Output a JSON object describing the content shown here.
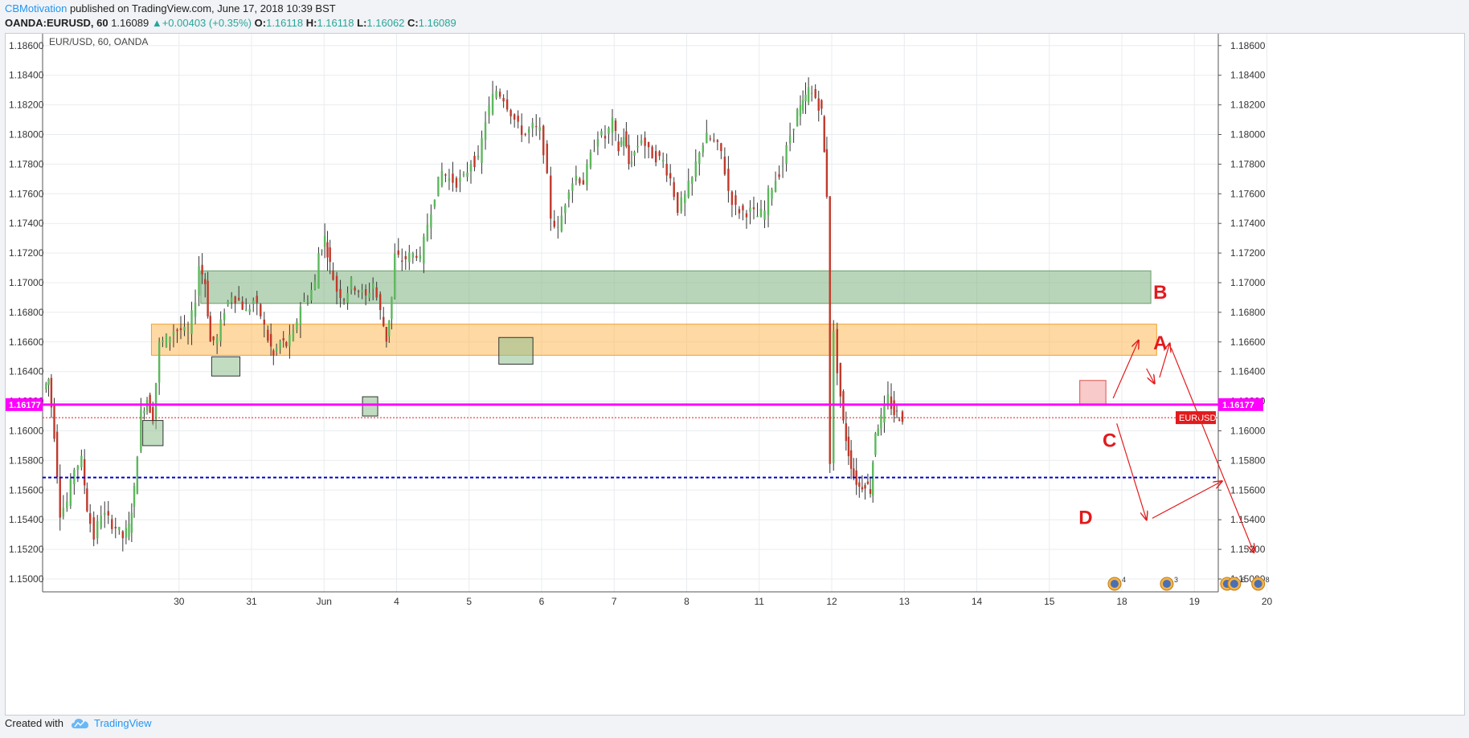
{
  "header": {
    "author": "CBMotivation",
    "published": "published on TradingView.com, June 17, 2018 10:39 BST",
    "symbol": "OANDA:EURUSD, 60",
    "last": "1.16089",
    "change_arrow": "▲",
    "change": "+0.00403 (+0.35%)",
    "o_label": "O:",
    "o_value": "1.16118",
    "h_label": "H:",
    "h_value": "1.16118",
    "l_label": "L:",
    "l_value": "1.16062",
    "c_label": "C:",
    "c_value": "1.16089"
  },
  "footer": {
    "created_with": "Created with",
    "brand": "TradingView"
  },
  "colors": {
    "bull": "#5cb85c",
    "bear": "#c0392b",
    "zone_green": "#7fb27f",
    "zone_orange": "#ffb347",
    "magenta": "#ff00ff",
    "blue_dash": "#0000cc",
    "annotation_red": "#e31a1c",
    "last_price_label": "#e31a1c"
  },
  "chart_data": {
    "type": "candlestick",
    "title": "EUR/USD, 60, OANDA",
    "ylim": [
      1.1487,
      1.1867
    ],
    "y_ticks": [
      "1.18600",
      "1.18400",
      "1.18200",
      "1.18000",
      "1.17800",
      "1.17600",
      "1.17400",
      "1.17200",
      "1.17000",
      "1.16800",
      "1.16600",
      "1.16400",
      "1.16200",
      "1.16000",
      "1.15800",
      "1.15600",
      "1.15400",
      "1.15200",
      "1.15000"
    ],
    "x_ticks": [
      {
        "day": 1.0,
        "label": "30"
      },
      {
        "day": 2.0,
        "label": "31"
      },
      {
        "day": 3.0,
        "label": "Jun"
      },
      {
        "day": 4.0,
        "label": "4"
      },
      {
        "day": 5.0,
        "label": "5"
      },
      {
        "day": 6.0,
        "label": "6"
      },
      {
        "day": 7.0,
        "label": "7"
      },
      {
        "day": 8.0,
        "label": "8"
      },
      {
        "day": 9.0,
        "label": "11"
      },
      {
        "day": 10.0,
        "label": "12"
      },
      {
        "day": 11.0,
        "label": "13"
      },
      {
        "day": 12.0,
        "label": "14"
      },
      {
        "day": 13.0,
        "label": "15"
      },
      {
        "day": 14.0,
        "label": "18"
      },
      {
        "day": 15.0,
        "label": "19"
      },
      {
        "day": 16.0,
        "label": "20"
      }
    ],
    "price_path": [
      [
        -0.85,
        1.1628
      ],
      [
        -0.78,
        1.1635
      ],
      [
        -0.7,
        1.1598
      ],
      [
        -0.62,
        1.1545
      ],
      [
        -0.52,
        1.1552
      ],
      [
        -0.42,
        1.1575
      ],
      [
        -0.32,
        1.158
      ],
      [
        -0.25,
        1.1548
      ],
      [
        -0.15,
        1.1528
      ],
      [
        -0.05,
        1.1545
      ],
      [
        0.05,
        1.154
      ],
      [
        0.15,
        1.1535
      ],
      [
        0.25,
        1.1528
      ],
      [
        0.33,
        1.1535
      ],
      [
        0.4,
        1.156
      ],
      [
        0.5,
        1.1612
      ],
      [
        0.58,
        1.1622
      ],
      [
        0.66,
        1.1608
      ],
      [
        0.75,
        1.1658
      ],
      [
        0.85,
        1.1662
      ],
      [
        0.95,
        1.1668
      ],
      [
        1.05,
        1.1668
      ],
      [
        1.15,
        1.1665
      ],
      [
        1.25,
        1.169
      ],
      [
        1.3,
        1.1712
      ],
      [
        1.38,
        1.17
      ],
      [
        1.45,
        1.166
      ],
      [
        1.55,
        1.1662
      ],
      [
        1.65,
        1.1682
      ],
      [
        1.75,
        1.1692
      ],
      [
        1.85,
        1.1688
      ],
      [
        1.95,
        1.168
      ],
      [
        2.05,
        1.1688
      ],
      [
        2.15,
        1.1678
      ],
      [
        2.25,
        1.1662
      ],
      [
        2.32,
        1.165
      ],
      [
        2.42,
        1.166
      ],
      [
        2.5,
        1.1658
      ],
      [
        2.6,
        1.1665
      ],
      [
        2.7,
        1.1685
      ],
      [
        2.8,
        1.169
      ],
      [
        2.9,
        1.17
      ],
      [
        2.95,
        1.172
      ],
      [
        3.03,
        1.173
      ],
      [
        3.1,
        1.1712
      ],
      [
        3.2,
        1.1695
      ],
      [
        3.3,
        1.169
      ],
      [
        3.4,
        1.17
      ],
      [
        3.5,
        1.1695
      ],
      [
        3.6,
        1.169
      ],
      [
        3.7,
        1.17
      ],
      [
        3.8,
        1.168
      ],
      [
        3.88,
        1.1662
      ],
      [
        3.95,
        1.169
      ],
      [
        4.0,
        1.1718
      ],
      [
        4.1,
        1.1715
      ],
      [
        4.2,
        1.1718
      ],
      [
        4.3,
        1.172
      ],
      [
        4.35,
        1.1715
      ],
      [
        4.45,
        1.174
      ],
      [
        4.55,
        1.176
      ],
      [
        4.65,
        1.1775
      ],
      [
        4.75,
        1.177
      ],
      [
        4.85,
        1.1768
      ],
      [
        4.95,
        1.177
      ],
      [
        5.05,
        1.1782
      ],
      [
        5.15,
        1.1782
      ],
      [
        5.25,
        1.181
      ],
      [
        5.35,
        1.1825
      ],
      [
        5.4,
        1.183
      ],
      [
        5.5,
        1.1825
      ],
      [
        5.6,
        1.1815
      ],
      [
        5.7,
        1.1805
      ],
      [
        5.8,
        1.18
      ],
      [
        5.9,
        1.1805
      ],
      [
        6.0,
        1.1802
      ],
      [
        6.05,
        1.179
      ],
      [
        6.1,
        1.177
      ],
      [
        6.15,
        1.1745
      ],
      [
        6.25,
        1.1735
      ],
      [
        6.3,
        1.1745
      ],
      [
        6.4,
        1.1765
      ],
      [
        6.5,
        1.1772
      ],
      [
        6.6,
        1.1768
      ],
      [
        6.7,
        1.1785
      ],
      [
        6.8,
        1.18
      ],
      [
        6.9,
        1.1798
      ],
      [
        7.0,
        1.1808
      ],
      [
        7.08,
        1.179
      ],
      [
        7.15,
        1.18
      ],
      [
        7.22,
        1.178
      ],
      [
        7.3,
        1.1788
      ],
      [
        7.4,
        1.1798
      ],
      [
        7.5,
        1.1788
      ],
      [
        7.6,
        1.1785
      ],
      [
        7.7,
        1.1782
      ],
      [
        7.8,
        1.177
      ],
      [
        7.9,
        1.175
      ],
      [
        8.0,
        1.1758
      ],
      [
        8.05,
        1.1765
      ],
      [
        8.1,
        1.177
      ],
      [
        8.2,
        1.179
      ],
      [
        8.3,
        1.1798
      ],
      [
        8.4,
        1.1795
      ],
      [
        8.5,
        1.1788
      ],
      [
        8.6,
        1.1762
      ],
      [
        8.7,
        1.175
      ],
      [
        8.8,
        1.1748
      ],
      [
        8.9,
        1.1748
      ],
      [
        9.0,
        1.1745
      ],
      [
        9.1,
        1.1748
      ],
      [
        9.15,
        1.176
      ],
      [
        9.25,
        1.177
      ],
      [
        9.35,
        1.178
      ],
      [
        9.45,
        1.18
      ],
      [
        9.55,
        1.1815
      ],
      [
        9.62,
        1.182
      ],
      [
        9.7,
        1.183
      ],
      [
        9.8,
        1.1825
      ],
      [
        9.88,
        1.1815
      ],
      [
        9.95,
        1.176
      ],
      [
        10.0,
        1.158
      ],
      [
        10.05,
        1.1665
      ],
      [
        10.1,
        1.1642
      ],
      [
        10.18,
        1.1605
      ],
      [
        10.25,
        1.1585
      ],
      [
        10.32,
        1.157
      ],
      [
        10.4,
        1.1562
      ],
      [
        10.48,
        1.1565
      ],
      [
        10.55,
        1.156
      ],
      [
        10.62,
        1.16
      ],
      [
        10.7,
        1.1608
      ],
      [
        10.8,
        1.1622
      ],
      [
        10.88,
        1.1612
      ],
      [
        10.95,
        1.161
      ],
      [
        11.0,
        1.1609
      ]
    ],
    "zones": [
      {
        "name": "B",
        "label": "B",
        "y_top": 1.1708,
        "y_bottom": 1.1686,
        "day_start": 1.3,
        "day_end": 14.4
      },
      {
        "name": "orange",
        "label": "",
        "y_top": 1.1672,
        "y_bottom": 1.1651,
        "day_start": 0.62,
        "day_end": 14.48
      }
    ],
    "small_boxes": [
      {
        "day_start": 0.5,
        "day_end": 0.78,
        "y_top": 1.1607,
        "y_bottom": 1.159,
        "kind": "green"
      },
      {
        "day_start": 1.45,
        "day_end": 1.84,
        "y_top": 1.165,
        "y_bottom": 1.1637,
        "kind": "green"
      },
      {
        "day_start": 3.53,
        "day_end": 3.74,
        "y_top": 1.1623,
        "y_bottom": 1.161,
        "kind": "green"
      },
      {
        "day_start": 5.41,
        "day_end": 5.88,
        "y_top": 1.1663,
        "y_bottom": 1.1645,
        "kind": "green"
      },
      {
        "day_start": 13.42,
        "day_end": 13.78,
        "y_top": 1.1634,
        "y_bottom": 1.1618,
        "kind": "red"
      }
    ],
    "hlines": [
      {
        "name": "magenta-level",
        "y": 1.16177,
        "label": "1.16177"
      },
      {
        "name": "blue-dash-level",
        "y": 1.15685,
        "label": ""
      },
      {
        "name": "last-price",
        "y": 1.16089,
        "label": "EURUSD"
      }
    ],
    "annotations": [
      {
        "label": "A",
        "day": 14.53,
        "y": 1.166
      },
      {
        "label": "B",
        "day": 14.53,
        "y": 1.1694
      },
      {
        "label": "C",
        "day": 13.83,
        "y": 1.1594
      },
      {
        "label": "D",
        "day": 13.5,
        "y": 1.1542
      }
    ],
    "arrows": [
      [
        [
          13.88,
          1.1622
        ],
        [
          14.23,
          1.1661
        ]
      ],
      [
        [
          14.34,
          1.1642
        ],
        [
          14.45,
          1.1632
        ]
      ],
      [
        [
          14.52,
          1.1636
        ],
        [
          14.66,
          1.1659
        ]
      ],
      [
        [
          14.68,
          1.1656
        ],
        [
          15.82,
          1.1518
        ]
      ],
      [
        [
          13.93,
          1.1605
        ],
        [
          14.34,
          1.154
        ]
      ],
      [
        [
          14.42,
          1.1541
        ],
        [
          15.38,
          1.1566
        ]
      ]
    ],
    "events": [
      {
        "day": 13.9,
        "count": "4"
      },
      {
        "day": 14.62,
        "count": "3"
      },
      {
        "day": 15.45,
        "count": "2"
      },
      {
        "day": 15.55,
        "count": "6"
      },
      {
        "day": 15.88,
        "count": "8"
      }
    ]
  }
}
